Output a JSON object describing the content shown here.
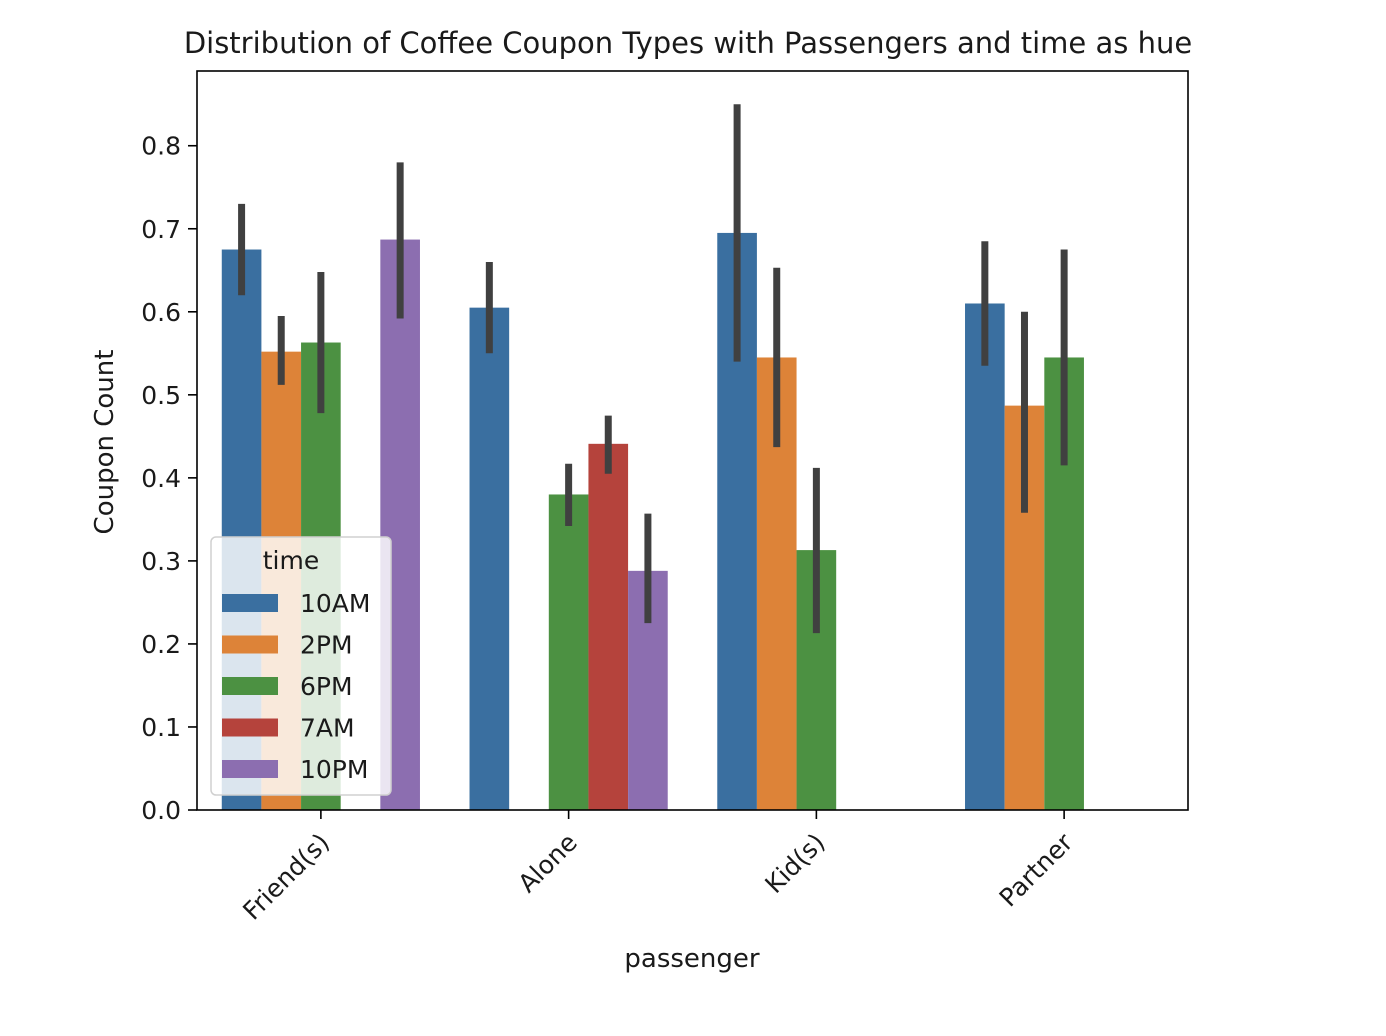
{
  "chart_data": {
    "type": "bar",
    "title": "Distribution of Coffee Coupon Types with Passengers and time as hue",
    "xlabel": "passenger",
    "ylabel": "Coupon Count",
    "ylim": [
      0,
      0.89
    ],
    "yticks": [
      0.0,
      0.1,
      0.2,
      0.3,
      0.4,
      0.5,
      0.6,
      0.7,
      0.8
    ],
    "ytick_labels": [
      "0.0",
      "0.1",
      "0.2",
      "0.3",
      "0.4",
      "0.5",
      "0.6",
      "0.7",
      "0.8"
    ],
    "categories": [
      "Friend(s)",
      "Alone",
      "Kid(s)",
      "Partner"
    ],
    "legend": {
      "title": "time",
      "position": "lower-left"
    },
    "series": [
      {
        "name": "10AM",
        "color": "#3a6fa0",
        "values": [
          0.675,
          0.605,
          0.695,
          0.61
        ],
        "ci_low": [
          0.62,
          0.55,
          0.54,
          0.535
        ],
        "ci_high": [
          0.73,
          0.66,
          0.85,
          0.685
        ]
      },
      {
        "name": "2PM",
        "color": "#dd8338",
        "values": [
          0.552,
          null,
          0.545,
          0.487
        ],
        "ci_low": [
          0.512,
          null,
          0.437,
          0.358
        ],
        "ci_high": [
          0.595,
          null,
          0.653,
          0.6
        ]
      },
      {
        "name": "6PM",
        "color": "#4c9142",
        "values": [
          0.563,
          0.38,
          0.313,
          0.545
        ],
        "ci_low": [
          0.478,
          0.342,
          0.213,
          0.415
        ],
        "ci_high": [
          0.648,
          0.417,
          0.412,
          0.675
        ]
      },
      {
        "name": "7AM",
        "color": "#b5433c",
        "values": [
          null,
          0.441,
          null,
          null
        ],
        "ci_low": [
          null,
          0.405,
          null,
          null
        ],
        "ci_high": [
          null,
          0.475,
          null,
          null
        ]
      },
      {
        "name": "10PM",
        "color": "#8c6eb0",
        "values": [
          0.687,
          0.288,
          null,
          null
        ],
        "ci_low": [
          0.592,
          0.225,
          null,
          null
        ],
        "ci_high": [
          0.78,
          0.357,
          null,
          null
        ]
      }
    ],
    "errorbar_color": "#404040",
    "grid": false
  }
}
